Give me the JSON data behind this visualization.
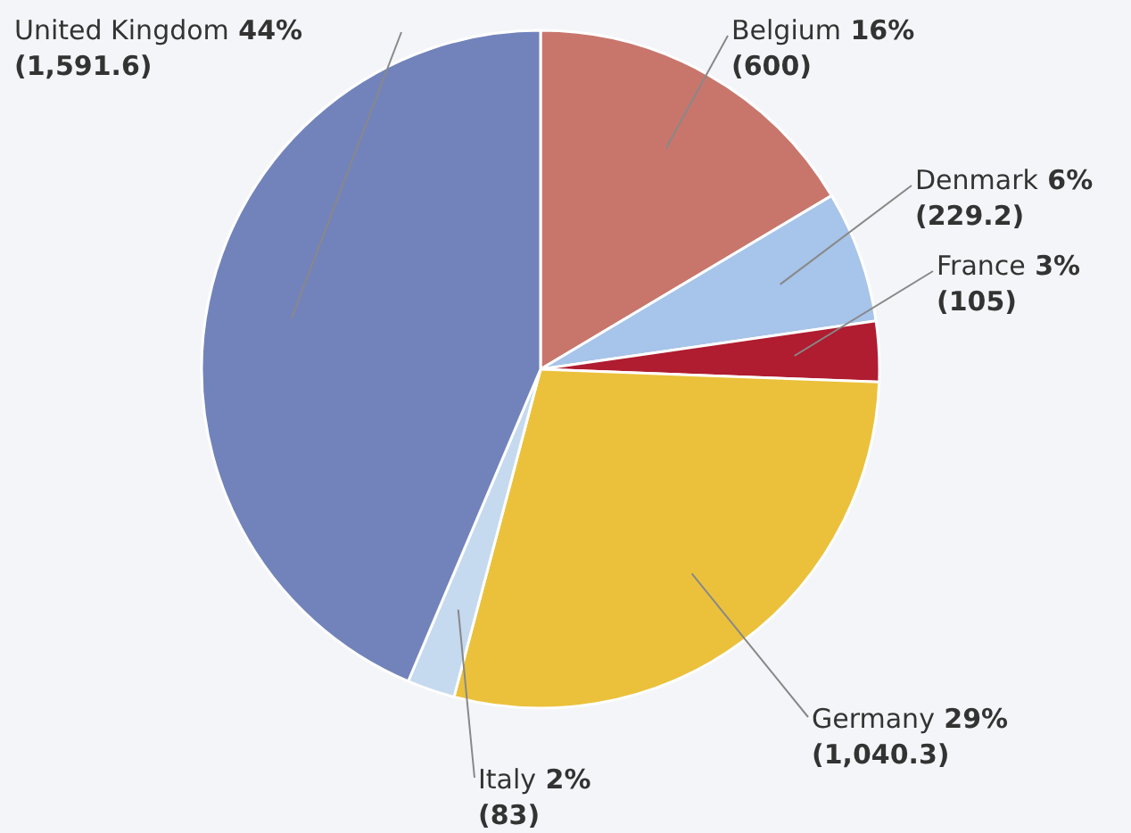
{
  "chart_data": {
    "type": "pie",
    "categories": [
      "Belgium",
      "Denmark",
      "France",
      "Germany",
      "Italy",
      "United Kingdom"
    ],
    "values": [
      600,
      229.2,
      105,
      1040.3,
      83,
      1591.6
    ],
    "colors": [
      "#c8766c",
      "#a7c4ea",
      "#b01c30",
      "#ebc13c",
      "#c5d9ef",
      "#7283bb"
    ],
    "value_labels": [
      "16% (600)",
      "6% (229.2)",
      "3% (105)",
      "29% (1,040.3)",
      "2% (83)",
      "44% (1,591.6)"
    ]
  }
}
